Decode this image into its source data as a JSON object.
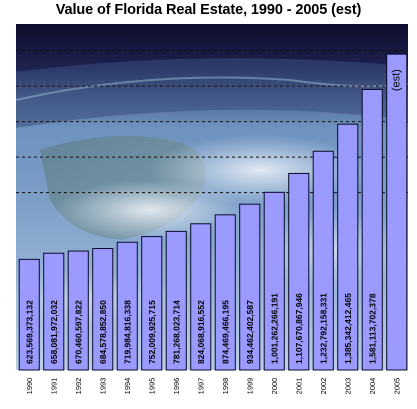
{
  "chart_data": {
    "type": "bar",
    "title": "Value of Florida Real Estate, 1990 - 2005 (est)",
    "xlabel": "",
    "ylabel": "",
    "categories": [
      "1990",
      "1991",
      "1992",
      "1993",
      "1994",
      "1995",
      "1996",
      "1997",
      "1998",
      "1999",
      "2000",
      "2001",
      "2002",
      "2003",
      "2004",
      "2005"
    ],
    "values": [
      623569373132,
      658081972032,
      670460597822,
      684578852850,
      719984816338,
      752009925715,
      781268023714,
      824068916552,
      874469466195,
      934462402587,
      1001262266191,
      1107670867946,
      1232792158331,
      1385342412465,
      1581113702378,
      1780000000000
    ],
    "value_labels": [
      "623,569,373,132",
      "658,081,972,032",
      "670,460,597,822",
      "684,578,852,850",
      "719,984,816,338",
      "752,009,925,715",
      "781,268,023,714",
      "824,068,916,552",
      "874,469,466,195",
      "934,462,402,587",
      "1,001,262,266,191",
      "1,107,670,867,946",
      "1,232,792,158,331",
      "1,385,342,412,465",
      "1,581,113,702,378",
      "(est)"
    ],
    "ylim": [
      0,
      1950000000000
    ],
    "gridlines": [
      1000000000000,
      1200000000000,
      1400000000000,
      1600000000000,
      1800000000000
    ],
    "grid": "dashed horizontal",
    "legend": "none",
    "colors": {
      "bar_fill": "#9a9aff",
      "bar_stroke": "#0a0a2a",
      "grid": "#111111",
      "sky_top": "#0d0c2c",
      "sky_mid": "#2a2f5a",
      "earth_blue": "#6f95c2",
      "earth_low": "#a9c2dd"
    }
  }
}
